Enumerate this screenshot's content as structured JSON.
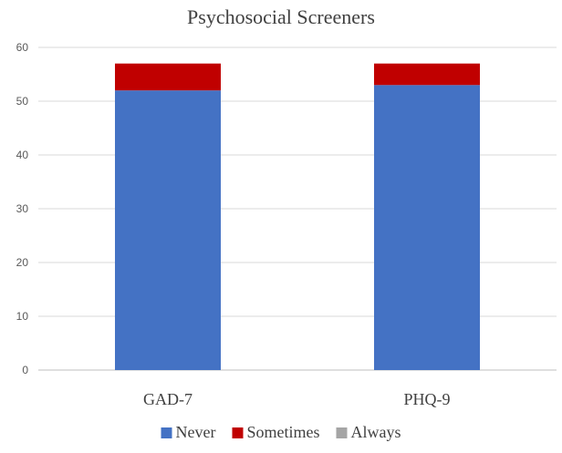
{
  "chart_data": {
    "type": "bar",
    "stacked": true,
    "title": "Psychosocial Screeners",
    "categories": [
      "GAD-7",
      "PHQ-9"
    ],
    "series": [
      {
        "name": "Never",
        "values": [
          52,
          53
        ],
        "color": "#4472C4"
      },
      {
        "name": "Sometimes",
        "values": [
          5,
          4
        ],
        "color": "#C00000"
      },
      {
        "name": "Always",
        "values": [
          0,
          0
        ],
        "color": "#A5A5A5"
      }
    ],
    "ylim": [
      0,
      60
    ],
    "yticks": [
      0,
      10,
      20,
      30,
      40,
      50,
      60
    ],
    "grid": true,
    "legend": "bottom"
  }
}
